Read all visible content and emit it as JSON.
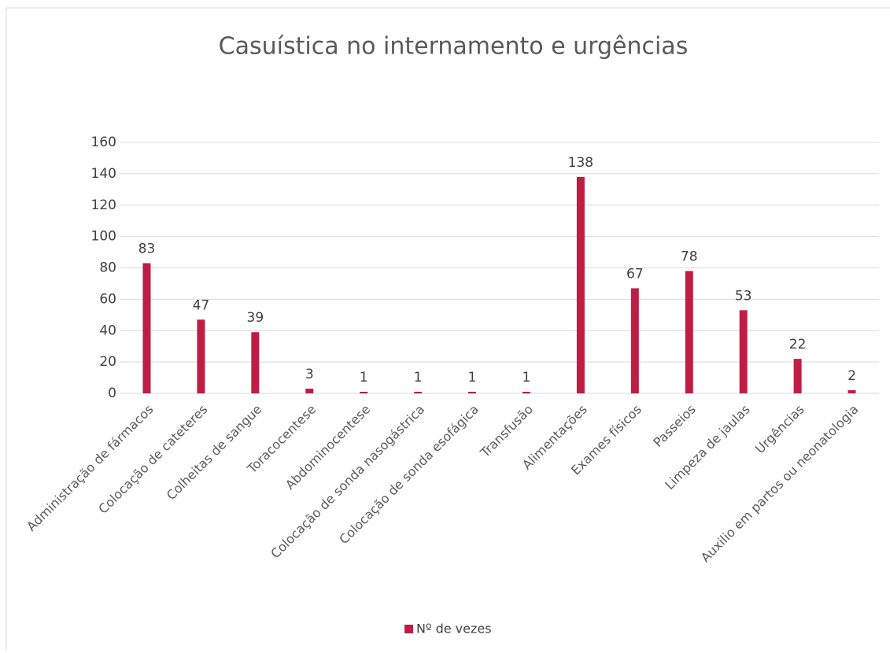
{
  "chart_data": {
    "type": "bar",
    "title": "Casuística no internamento e urgências",
    "categories": [
      "Administração de fármacos",
      "Colocação de cateteres",
      "Colheitas de sangue",
      "Toracocentese",
      "Abdominocentese",
      "Colocação de sonda nasogástrica",
      "Colocação de sonda esofágica",
      "Transfusão",
      "Alimentações",
      "Exames físicos",
      "Passeios",
      "Limpeza de jaulas",
      "Urgências",
      "Auxilio em partos ou neonatologia"
    ],
    "series": [
      {
        "name": "Nº de vezes",
        "color": "#be1e45",
        "values": [
          83,
          47,
          39,
          3,
          1,
          1,
          1,
          1,
          138,
          67,
          78,
          53,
          22,
          2
        ]
      }
    ],
    "ylim": [
      0,
      160
    ],
    "yticks": [
      0,
      20,
      40,
      60,
      80,
      100,
      120,
      140,
      160
    ],
    "grid": true,
    "legend": "bottom"
  }
}
